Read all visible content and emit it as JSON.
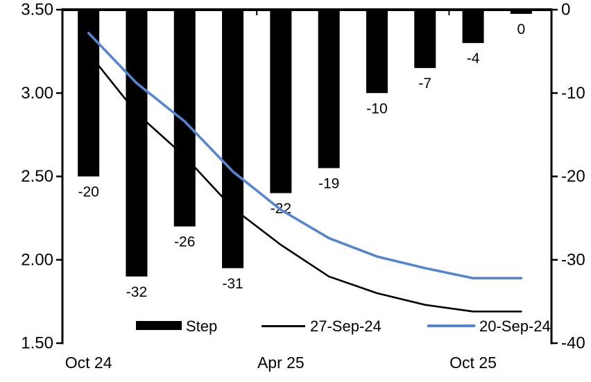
{
  "chart_data": {
    "type": "combo",
    "title": "",
    "n_categories": 10,
    "x_axis": {
      "labels": [
        {
          "text": "Oct 24",
          "index": 0
        },
        {
          "text": "Apr 25",
          "index": 4
        },
        {
          "text": "Oct 25",
          "index": 8
        }
      ],
      "boundary_tick_indices": [
        4,
        8
      ]
    },
    "left_axis": {
      "min": 1.5,
      "max": 3.5,
      "ticks": [
        {
          "value": 3.5,
          "label": "3.50"
        },
        {
          "value": 3.0,
          "label": "3.00"
        },
        {
          "value": 2.5,
          "label": "2.50"
        },
        {
          "value": 2.0,
          "label": "2.00"
        },
        {
          "value": 1.5,
          "label": "1.50"
        }
      ]
    },
    "right_axis": {
      "min": -40,
      "max": 0,
      "ticks": [
        {
          "value": 0,
          "label": "0"
        },
        {
          "value": -10,
          "label": "-10"
        },
        {
          "value": -20,
          "label": "-20"
        },
        {
          "value": -30,
          "label": "-30"
        },
        {
          "value": -40,
          "label": "-40"
        }
      ]
    },
    "series": [
      {
        "name": "Step",
        "type": "bar",
        "axis": "right",
        "color": "#000000",
        "values": [
          -20,
          -32,
          -26,
          -31,
          -22,
          -19,
          -10,
          -7,
          -4,
          0
        ],
        "labels": [
          "-20",
          "-32",
          "-26",
          "-31",
          "-22",
          "-19",
          "-10",
          "-7",
          "-4",
          "0"
        ]
      },
      {
        "name": "27-Sep-24",
        "type": "line",
        "axis": "left",
        "color": "#000000",
        "width": 2.6,
        "values": [
          3.24,
          2.88,
          2.62,
          2.31,
          2.09,
          1.9,
          1.8,
          1.73,
          1.69,
          1.69
        ]
      },
      {
        "name": "20-Sep-24",
        "type": "line",
        "axis": "left",
        "color": "#5585d0",
        "width": 3.6,
        "values": [
          3.36,
          3.06,
          2.83,
          2.53,
          2.3,
          2.13,
          2.02,
          1.95,
          1.89,
          1.89
        ]
      }
    ],
    "legend": {
      "position": "bottom",
      "items": [
        {
          "label": "Step",
          "swatch": "bar",
          "color": "#000000"
        },
        {
          "label": "27-Sep-24",
          "swatch": "line",
          "color": "#000000"
        },
        {
          "label": "20-Sep-24",
          "swatch": "line",
          "color": "#5585d0"
        }
      ]
    }
  }
}
